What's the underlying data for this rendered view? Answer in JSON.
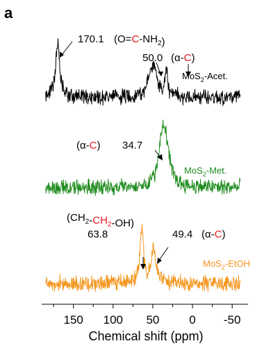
{
  "panel_label": "a",
  "colors": {
    "acet": "#000000",
    "met": "#1e8c1e",
    "etoh": "#f5961e",
    "highlight": "#e8141e"
  },
  "chart_data": {
    "type": "line",
    "xlabel": "Chemical shift (ppm)",
    "ylabel": "",
    "xlim": [
      190,
      -70
    ],
    "x_reversed": true,
    "grid": false,
    "x_ticks": [
      150,
      100,
      50,
      0,
      -50
    ],
    "x_tick_labels": [
      "150",
      "100",
      "50",
      "0",
      "-50"
    ],
    "series": [
      {
        "name": "MoS2-Acet.",
        "name_base": "MoS",
        "name_sub": "2",
        "name_rest": "-Acet.",
        "color": "#000000",
        "x_range": [
          185,
          -60
        ],
        "peaks": [
          {
            "x": 170.1,
            "height": 1.0,
            "width": 3
          },
          {
            "x": 50.0,
            "height": 0.6,
            "width": 6
          },
          {
            "x": 33.0,
            "height": 0.55,
            "width": 1.5
          }
        ]
      },
      {
        "name": "MoS2-Met.",
        "name_base": "MoS",
        "name_sub": "2",
        "name_rest": "-Met.",
        "color": "#1e8c1e",
        "x_range": [
          185,
          -60
        ],
        "peaks": [
          {
            "x": 34.7,
            "height": 1.0,
            "width": 6
          },
          {
            "x": 40.0,
            "height": 0.45,
            "width": 4
          }
        ]
      },
      {
        "name": "MoS2-EtOH",
        "name_base": "MoS",
        "name_sub": "2",
        "name_rest": "-EtOH",
        "color": "#f5961e",
        "x_range": [
          185,
          -60
        ],
        "peaks": [
          {
            "x": 63.8,
            "height": 1.0,
            "width": 2.5
          },
          {
            "x": 49.4,
            "height": 0.65,
            "width": 3.5
          }
        ]
      }
    ],
    "annotations": [
      {
        "value": "170.1",
        "formula": {
          "parts": [
            [
              "(O=",
              "#000000"
            ],
            [
              "C",
              "#e8141e"
            ],
            [
              "-NH",
              "#000000"
            ],
            [
              "2",
              "#000000",
              "sub"
            ],
            [
              ")",
              "#000000"
            ]
          ]
        }
      },
      {
        "value": "50.0",
        "group": {
          "parts": [
            [
              "(α-",
              "#000000"
            ],
            [
              "C",
              "#e8141e"
            ],
            [
              ")",
              "#000000"
            ]
          ]
        }
      },
      {
        "value": "34.7",
        "group": {
          "parts": [
            [
              "(α-",
              "#000000"
            ],
            [
              "C",
              "#e8141e"
            ],
            [
              ")",
              "#000000"
            ]
          ]
        }
      },
      {
        "value": "63.8",
        "formula": {
          "parts": [
            [
              "(CH",
              "#000000"
            ],
            [
              "2",
              "#000000",
              "sub"
            ],
            [
              "-",
              "#000000"
            ],
            [
              "CH",
              "#e8141e"
            ],
            [
              "2",
              "#e8141e",
              "sub"
            ],
            [
              "-OH)",
              "#000000"
            ]
          ]
        }
      },
      {
        "value": "49.4",
        "group": {
          "parts": [
            [
              "(α-",
              "#000000"
            ],
            [
              "C",
              "#e8141e"
            ],
            [
              ")",
              "#000000"
            ]
          ]
        }
      }
    ]
  }
}
